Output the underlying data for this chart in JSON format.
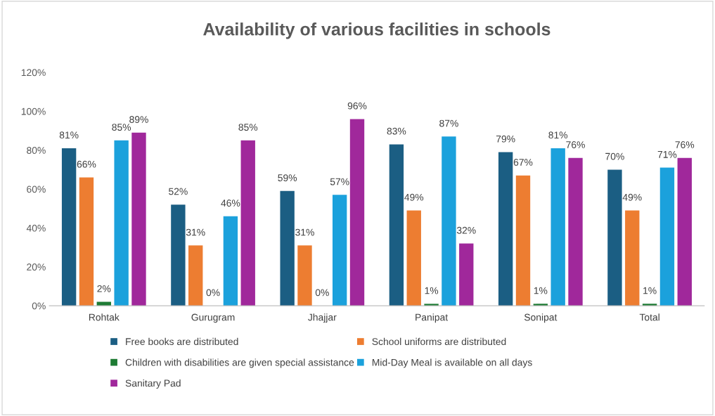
{
  "chart_data": {
    "type": "bar",
    "title": "Availability of various facilities in schools",
    "categories": [
      "Rohtak",
      "Gurugram",
      "Jhajjar",
      "Panipat",
      "Sonipat",
      "Total"
    ],
    "series": [
      {
        "name": "Free books are distributed",
        "color": "#1b5e83",
        "values": [
          81,
          52,
          59,
          83,
          79,
          70
        ],
        "value_labels": [
          "81%",
          "52%",
          "59%",
          "83%",
          "79%",
          "70%"
        ]
      },
      {
        "name": "School uniforms are distributed",
        "color": "#ed7d31",
        "values": [
          66,
          31,
          31,
          49,
          67,
          49
        ],
        "value_labels": [
          "66%",
          "31%",
          "31%",
          "49%",
          "67%",
          "49%"
        ]
      },
      {
        "name": "Children with disabilities are given special assistance",
        "color": "#1e7b34",
        "values": [
          2,
          0,
          0,
          1,
          1,
          1
        ],
        "value_labels": [
          "2%",
          "0%",
          "0%",
          "1%",
          "1%",
          "1%"
        ]
      },
      {
        "name": "Mid-Day Meal is available on all days",
        "color": "#1ba1dc",
        "values": [
          85,
          46,
          57,
          87,
          81,
          71
        ],
        "value_labels": [
          "85%",
          "46%",
          "57%",
          "87%",
          "81%",
          "71%"
        ]
      },
      {
        "name": "Sanitary Pad",
        "color": "#a0289b",
        "values": [
          89,
          85,
          96,
          32,
          76,
          76
        ],
        "value_labels": [
          "89%",
          "85%",
          "96%",
          "32%",
          "76%",
          "76%"
        ]
      }
    ],
    "ylim": [
      0,
      120
    ],
    "yticks": [
      {
        "value": 0,
        "label": "0%"
      },
      {
        "value": 20,
        "label": "20%"
      },
      {
        "value": 40,
        "label": "40%"
      },
      {
        "value": 60,
        "label": "60%"
      },
      {
        "value": 80,
        "label": "80%"
      },
      {
        "value": 100,
        "label": "100%"
      },
      {
        "value": 120,
        "label": "120%"
      }
    ],
    "grid": false,
    "legend": "bottom"
  }
}
